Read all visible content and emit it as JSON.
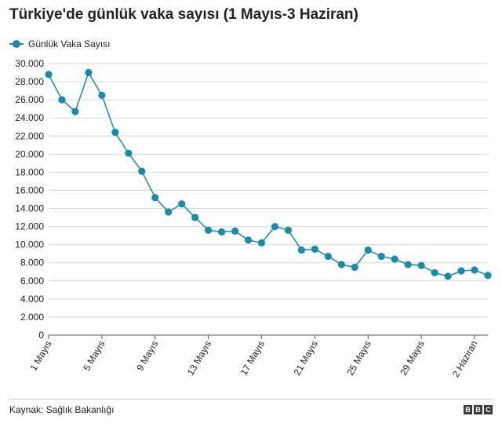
{
  "colors": {
    "series": "#1a8aa8",
    "text": "#222222",
    "grid": "#d9d9d9"
  },
  "chart_data": {
    "type": "line",
    "title": "Türkiye'de günlük vaka sayısı (1 Mayıs-3 Haziran)",
    "legend_position": "top-left",
    "grid": true,
    "ylim": [
      0,
      30000
    ],
    "y_ticks": [
      0,
      2000,
      4000,
      6000,
      8000,
      10000,
      12000,
      14000,
      16000,
      18000,
      20000,
      22000,
      24000,
      26000,
      28000,
      30000
    ],
    "y_tick_labels": [
      "0",
      "2.000",
      "4.000",
      "6.000",
      "8.000",
      "10.000",
      "12.000",
      "14.000",
      "16.000",
      "18.000",
      "20.000",
      "22.000",
      "24.000",
      "26.000",
      "28.000",
      "30.000"
    ],
    "x_tick_labels": [
      "1 Mayıs",
      "5 Mayıs",
      "9 Mayıs",
      "13 Mayıs",
      "17 Mayıs",
      "21 Mayıs",
      "25 Mayıs",
      "29 Mayıs",
      "2 Haziran"
    ],
    "x_tick_positions": [
      0,
      4,
      8,
      12,
      16,
      20,
      24,
      28,
      32
    ],
    "series": [
      {
        "name": "Günlük Vaka Sayısı",
        "values": [
          28800,
          26000,
          24700,
          29000,
          26500,
          22400,
          20100,
          18100,
          15200,
          13600,
          14500,
          13000,
          11600,
          11400,
          11500,
          10500,
          10200,
          12000,
          11600,
          9400,
          9500,
          8700,
          7800,
          7500,
          9400,
          8700,
          8400,
          7800,
          7700,
          6900,
          6500,
          7100,
          7200,
          6600
        ]
      }
    ]
  },
  "footer": {
    "source": "Kaynak: Sağlık Bakanlığı",
    "logo_letters": [
      "B",
      "B",
      "C"
    ]
  }
}
